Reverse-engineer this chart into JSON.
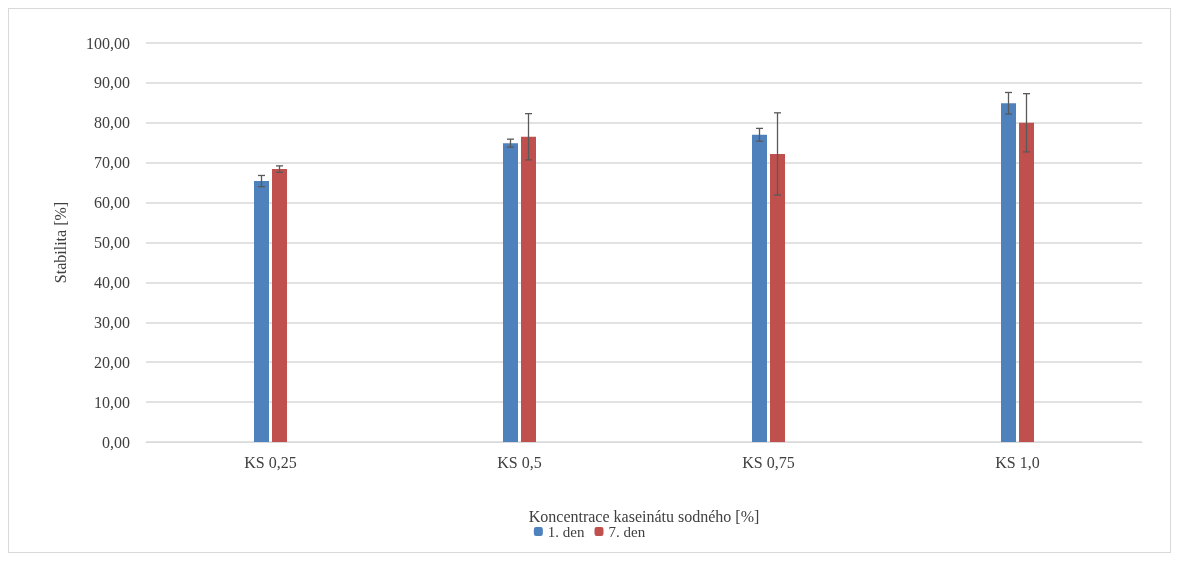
{
  "chart_data": {
    "type": "bar",
    "xlabel": "Koncentrace kaseinátu sodného [%]",
    "ylabel": "Stabilita [%]",
    "categories": [
      "KS 0,25",
      "KS 0,5",
      "KS 0,75",
      "KS 1,0"
    ],
    "series": [
      {
        "name": "1. den",
        "color": "#4f81bd",
        "values": [
          65.4,
          74.9,
          77.0,
          84.9
        ],
        "errors": [
          1.4,
          1.0,
          1.6,
          2.7
        ]
      },
      {
        "name": "7. den",
        "color": "#c0504d",
        "values": [
          68.4,
          76.5,
          72.2,
          80.0
        ],
        "errors": [
          0.8,
          5.8,
          10.3,
          7.3
        ]
      }
    ],
    "ylim": [
      0,
      100
    ],
    "yticks": [
      {
        "value": 0,
        "label": "0,00"
      },
      {
        "value": 10,
        "label": "10,00"
      },
      {
        "value": 20,
        "label": "20,00"
      },
      {
        "value": 30,
        "label": "30,00"
      },
      {
        "value": 40,
        "label": "40,00"
      },
      {
        "value": 50,
        "label": "50,00"
      },
      {
        "value": 60,
        "label": "60,00"
      },
      {
        "value": 70,
        "label": "70,00"
      },
      {
        "value": 80,
        "label": "80,00"
      },
      {
        "value": 90,
        "label": "90,00"
      },
      {
        "value": 100,
        "label": "100,00"
      }
    ],
    "grid": "y",
    "legend": "bottom"
  }
}
